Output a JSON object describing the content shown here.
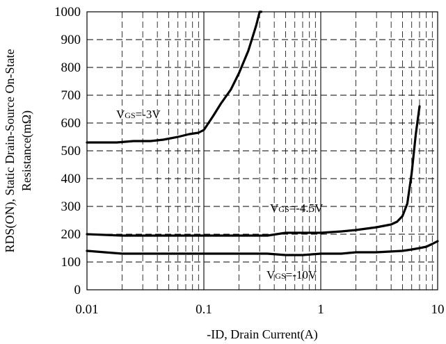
{
  "chart_data": {
    "type": "line",
    "xlabel": "-ID, Drain Current(A)",
    "ylabel_line1": "RDS(ON), Static Drain-Source On-State",
    "ylabel_line2": "Resistance(mΩ)",
    "x_scale": "log",
    "xlim": [
      0.01,
      10
    ],
    "ylim": [
      0,
      1000
    ],
    "x_ticks": [
      0.01,
      0.1,
      1,
      10
    ],
    "x_tick_labels": [
      "0.01",
      "0.1",
      "1",
      "10"
    ],
    "y_ticks": [
      0,
      100,
      200,
      300,
      400,
      500,
      600,
      700,
      800,
      900,
      1000
    ],
    "y_tick_labels": [
      "0",
      "100",
      "200",
      "300",
      "400",
      "500",
      "600",
      "700",
      "800",
      "900",
      "1000"
    ],
    "grid": true,
    "line_color": "#000000",
    "series": [
      {
        "name": "VGS=-3V",
        "label_main": "V",
        "label_sub": "GS",
        "label_rest": "=-3V",
        "x": [
          0.01,
          0.018,
          0.025,
          0.035,
          0.045,
          0.06,
          0.075,
          0.09,
          0.1,
          0.12,
          0.14,
          0.17,
          0.2,
          0.24,
          0.28,
          0.3,
          0.31
        ],
        "y": [
          530,
          530,
          535,
          535,
          540,
          550,
          560,
          565,
          575,
          625,
          670,
          720,
          780,
          860,
          950,
          1000,
          1020
        ]
      },
      {
        "name": "VGS=-4.5V",
        "label_main": "V",
        "label_sub": "GS",
        "label_rest": "=-4.5V",
        "x": [
          0.01,
          0.02,
          0.05,
          0.1,
          0.2,
          0.35,
          0.5,
          1,
          1.5,
          2,
          3,
          4,
          4.5,
          5,
          5.5,
          6,
          6.5,
          7
        ],
        "y": [
          200,
          195,
          195,
          195,
          195,
          195,
          205,
          205,
          210,
          215,
          225,
          235,
          245,
          265,
          310,
          420,
          560,
          660
        ]
      },
      {
        "name": "VGS=-10V",
        "label_main": "V",
        "label_sub": "GS",
        "label_rest": "=-10V",
        "x": [
          0.01,
          0.02,
          0.05,
          0.1,
          0.2,
          0.35,
          0.5,
          0.7,
          1,
          1.5,
          2,
          3,
          5,
          6,
          7,
          8,
          9,
          10
        ],
        "y": [
          140,
          130,
          130,
          130,
          130,
          130,
          125,
          125,
          130,
          130,
          135,
          135,
          140,
          145,
          150,
          155,
          165,
          175
        ]
      }
    ]
  }
}
